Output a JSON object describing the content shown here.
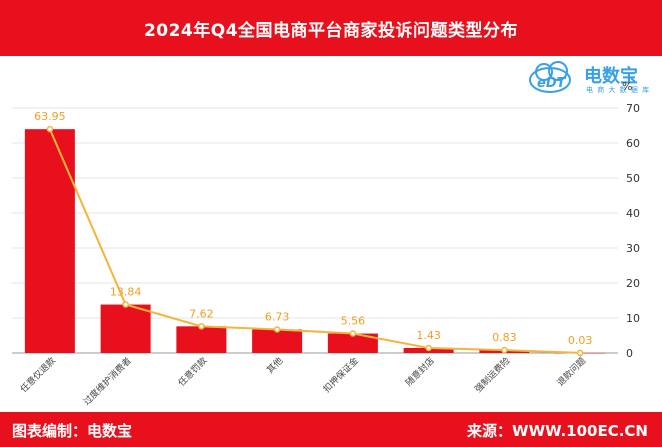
{
  "header": {
    "title": "2024年Q4全国电商平台商家投诉问题类型分布"
  },
  "logo": {
    "brand": "电数宝",
    "sub": "电 商 大 数 据 库",
    "mark": "cloud-edt-logo"
  },
  "footer": {
    "left": "图表编制：电数宝",
    "right": "来源：WWW.100EC.CN"
  },
  "colors": {
    "bar": "#e8101c",
    "line": "#f5b43c",
    "label": "#f0a020",
    "brand": "#3aa0e6"
  },
  "chart_data": {
    "type": "bar",
    "categories": [
      "任意仅退款",
      "过度维护消费者",
      "任意罚款",
      "其他",
      "扣押保证金",
      "随意封店",
      "强制运费险",
      "退款问题"
    ],
    "values": [
      63.95,
      13.84,
      7.62,
      6.73,
      5.56,
      1.43,
      0.83,
      0.03
    ],
    "data_labels": [
      "63.95",
      "13.84",
      "7.62",
      "6.73",
      "5.56",
      "1.43",
      "0.83",
      "0.03"
    ],
    "overlay_line": true,
    "unit": "%",
    "yaxis_position": "right",
    "ylim": [
      0,
      70
    ],
    "yticks": [
      0,
      10,
      20,
      30,
      40,
      50,
      60,
      70
    ],
    "grid": true
  }
}
